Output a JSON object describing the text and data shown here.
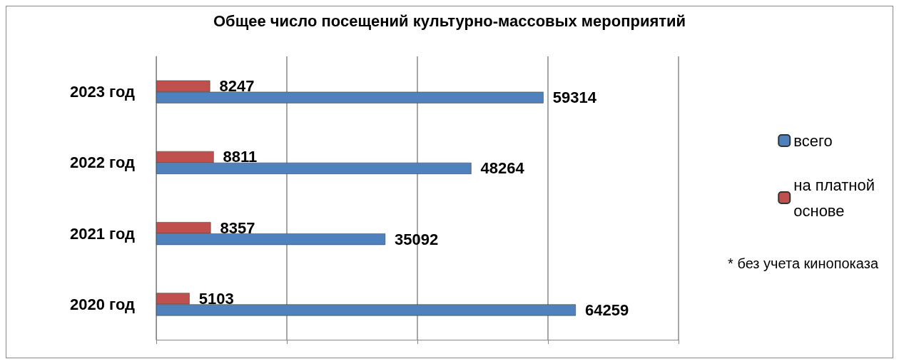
{
  "chart_data": {
    "type": "bar",
    "orientation": "horizontal",
    "title": "Общее число посещений культурно-массовых мероприятий",
    "categories": [
      "2023 год",
      "2022 год",
      "2021 год",
      "2020 год"
    ],
    "series": [
      {
        "name": "на платной основе",
        "color": "#c0504d",
        "values": [
          8247,
          8811,
          8357,
          5103
        ]
      },
      {
        "name": "всего",
        "color": "#4f81bd",
        "values": [
          59314,
          48264,
          35092,
          64259
        ]
      }
    ],
    "xlim": [
      0,
      80000
    ],
    "xticks": [
      {
        "value": 0,
        "label": null
      },
      {
        "value": 20000,
        "label": null
      },
      {
        "value": 40000,
        "label": null
      },
      {
        "value": 60000,
        "label": null
      },
      {
        "value": 80000,
        "label": null
      }
    ],
    "tick_labels": "y",
    "grid": "x",
    "legend": "right",
    "data_labels": true,
    "annotations": [
      "* без учета кинопоказа"
    ]
  }
}
